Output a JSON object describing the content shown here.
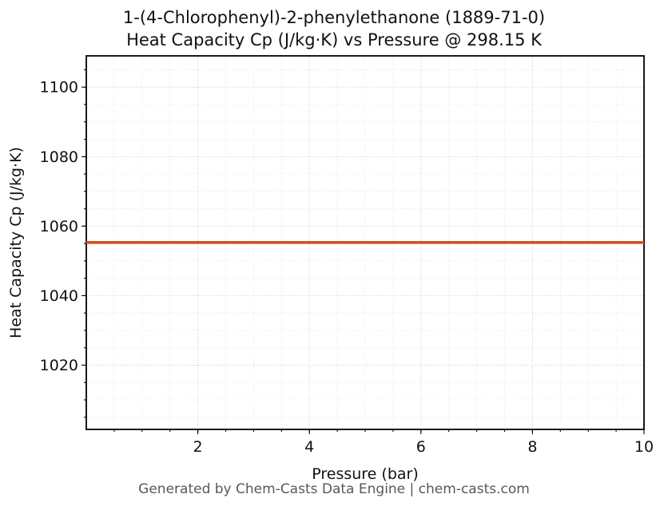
{
  "title": {
    "line1": "1-(4-Chlorophenyl)-2-phenylethanone (1889-71-0)",
    "line2": "Heat Capacity Cp (J/kg·K) vs Pressure @ 298.15 K"
  },
  "footer": "Generated by Chem-Casts Data Engine | chem-casts.com",
  "chart_data": {
    "type": "line",
    "title": "1-(4-Chlorophenyl)-2-phenylethanone (1889-71-0) — Heat Capacity Cp (J/kg·K) vs Pressure @ 298.15 K",
    "xlabel": "Pressure (bar)",
    "ylabel": "Heat Capacity Cp (J/kg·K)",
    "xlim": [
      0,
      10
    ],
    "ylim": [
      1001.5,
      1109
    ],
    "x_major_ticks": [
      2,
      4,
      6,
      8,
      10
    ],
    "y_major_ticks": [
      1020,
      1040,
      1060,
      1080,
      1100
    ],
    "x_minor_step": 0.5,
    "y_minor_step": 5,
    "grid": true,
    "legend": false,
    "series": [
      {
        "name": "Cp",
        "color": "#d2521c",
        "x": [
          0,
          10
        ],
        "y": [
          1055.3,
          1055.3
        ]
      }
    ]
  }
}
